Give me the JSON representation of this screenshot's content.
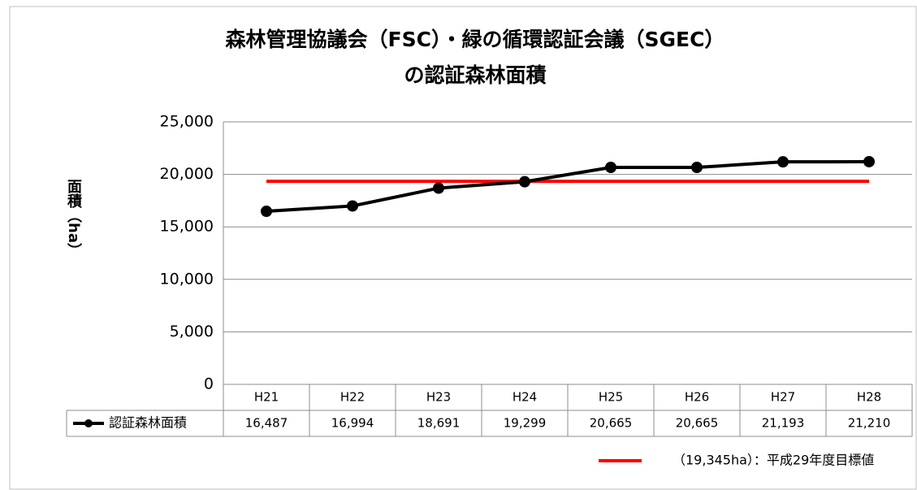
{
  "chart_data": {
    "type": "line",
    "title": [
      "森林管理協議会（FSC）・緑の循環認証会議（SGEC）",
      "の認証森林面積"
    ],
    "y_label": "面積（ha）",
    "categories": [
      "H21",
      "H22",
      "H23",
      "H24",
      "H25",
      "H26",
      "H27",
      "H28"
    ],
    "series": [
      {
        "name": "認証森林面積",
        "color": "#000000",
        "values": [
          16487,
          16994,
          18691,
          19299,
          20665,
          20665,
          21193,
          21210
        ],
        "value_labels": [
          "16,487",
          "16,994",
          "18,691",
          "19,299",
          "20,665",
          "20,665",
          "21,193",
          "21,210"
        ]
      },
      {
        "name": "（19,345ha）：平成29年度目標値",
        "color": "#ff0000",
        "values": [
          19345,
          19345,
          19345,
          19345,
          19345,
          19345,
          19345,
          19345
        ]
      }
    ],
    "ylim": [
      0,
      25000
    ],
    "yticks": [
      0,
      {
        "value": 5000,
        "label": "5,000"
      },
      {
        "value": 10000,
        "label": "10,000"
      },
      {
        "value": 15000,
        "label": "15,000"
      },
      {
        "value": 20000,
        "label": "20,000"
      },
      {
        "value": 25000,
        "label": "25,000"
      }
    ],
    "grid": true
  }
}
